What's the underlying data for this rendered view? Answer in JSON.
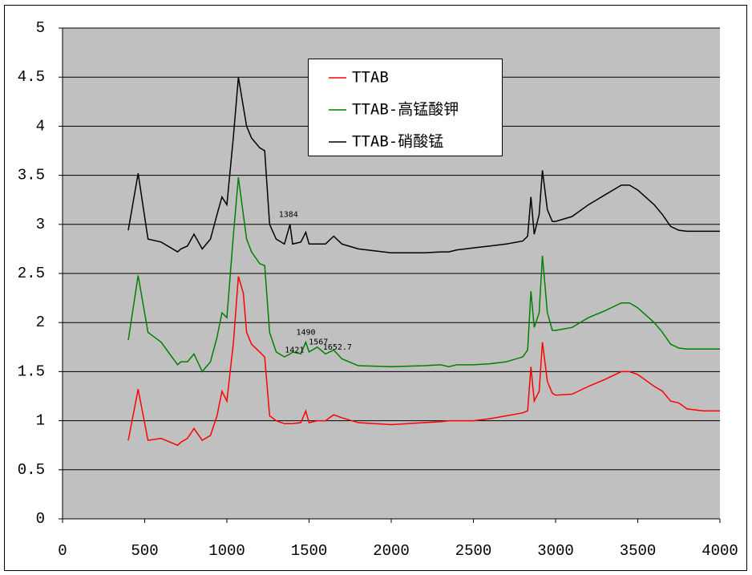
{
  "chart_data": {
    "type": "line",
    "x": [
      400,
      460,
      520,
      600,
      700,
      720,
      760,
      800,
      850,
      900,
      940,
      970,
      1000,
      1040,
      1070,
      1100,
      1120,
      1150,
      1200,
      1230,
      1260,
      1300,
      1350,
      1384,
      1400,
      1450,
      1480,
      1500,
      1550,
      1600,
      1650,
      1700,
      1800,
      2000,
      2200,
      2300,
      2350,
      2400,
      2500,
      2600,
      2700,
      2800,
      2830,
      2850,
      2870,
      2900,
      2920,
      2950,
      2980,
      3000,
      3100,
      3200,
      3300,
      3400,
      3450,
      3500,
      3600,
      3650,
      3700,
      3750,
      3800,
      3900,
      4000
    ],
    "series": [
      {
        "name": "TTAB",
        "color": "#ff0000",
        "values": [
          0.8,
          1.32,
          0.8,
          0.82,
          0.75,
          0.78,
          0.82,
          0.92,
          0.8,
          0.85,
          1.05,
          1.3,
          1.2,
          1.8,
          2.47,
          2.3,
          1.9,
          1.78,
          1.7,
          1.65,
          1.05,
          1.0,
          0.97,
          0.97,
          0.97,
          0.98,
          1.1,
          0.98,
          1.0,
          1.0,
          1.06,
          1.03,
          0.98,
          0.96,
          0.98,
          0.99,
          1.0,
          1.0,
          1.0,
          1.02,
          1.05,
          1.08,
          1.1,
          1.55,
          1.2,
          1.3,
          1.8,
          1.4,
          1.28,
          1.26,
          1.27,
          1.35,
          1.42,
          1.5,
          1.5,
          1.47,
          1.35,
          1.3,
          1.2,
          1.18,
          1.12,
          1.1,
          1.1
        ]
      },
      {
        "name": "TTAB-高锰酸钾",
        "color": "#008000",
        "values": [
          1.82,
          2.48,
          1.9,
          1.8,
          1.57,
          1.6,
          1.6,
          1.68,
          1.5,
          1.6,
          1.85,
          2.1,
          2.05,
          2.9,
          3.48,
          3.1,
          2.85,
          2.72,
          2.6,
          2.58,
          1.9,
          1.7,
          1.65,
          1.68,
          1.7,
          1.68,
          1.8,
          1.7,
          1.75,
          1.68,
          1.72,
          1.63,
          1.56,
          1.55,
          1.56,
          1.57,
          1.55,
          1.57,
          1.57,
          1.58,
          1.6,
          1.65,
          1.72,
          2.32,
          1.95,
          2.1,
          2.68,
          2.1,
          1.92,
          1.92,
          1.95,
          2.05,
          2.12,
          2.2,
          2.2,
          2.15,
          2.0,
          1.9,
          1.78,
          1.74,
          1.73,
          1.73,
          1.73
        ]
      },
      {
        "name": "TTAB-硝酸锰",
        "color": "#000000",
        "values": [
          2.94,
          3.52,
          2.85,
          2.82,
          2.72,
          2.75,
          2.78,
          2.9,
          2.75,
          2.85,
          3.1,
          3.28,
          3.2,
          3.9,
          4.5,
          4.2,
          4.0,
          3.88,
          3.78,
          3.75,
          3.0,
          2.85,
          2.8,
          3.0,
          2.8,
          2.82,
          2.92,
          2.8,
          2.8,
          2.8,
          2.88,
          2.8,
          2.75,
          2.71,
          2.71,
          2.72,
          2.72,
          2.74,
          2.76,
          2.78,
          2.8,
          2.83,
          2.88,
          3.28,
          2.9,
          3.1,
          3.55,
          3.15,
          3.03,
          3.03,
          3.08,
          3.2,
          3.3,
          3.4,
          3.4,
          3.35,
          3.2,
          3.1,
          2.98,
          2.94,
          2.93,
          2.93,
          2.93
        ]
      }
    ],
    "annotations": [
      {
        "text": "1384",
        "x": 1384,
        "y": 3.1
      },
      {
        "text": "1421",
        "x": 1421,
        "y": 1.72
      },
      {
        "text": "1490",
        "x": 1490,
        "y": 1.9
      },
      {
        "text": "1567",
        "x": 1567,
        "y": 1.8
      },
      {
        "text": "1652.7",
        "x": 1652.7,
        "y": 1.75
      }
    ],
    "xlim": [
      0,
      4000
    ],
    "xticks": [
      0,
      500,
      1000,
      1500,
      2000,
      2500,
      3000,
      3500,
      4000
    ],
    "ylim": [
      0,
      5
    ],
    "yticks": [
      0,
      0.5,
      1,
      1.5,
      2,
      2.5,
      3,
      3.5,
      4,
      4.5,
      5
    ],
    "grid": true,
    "legend": "top-center"
  }
}
